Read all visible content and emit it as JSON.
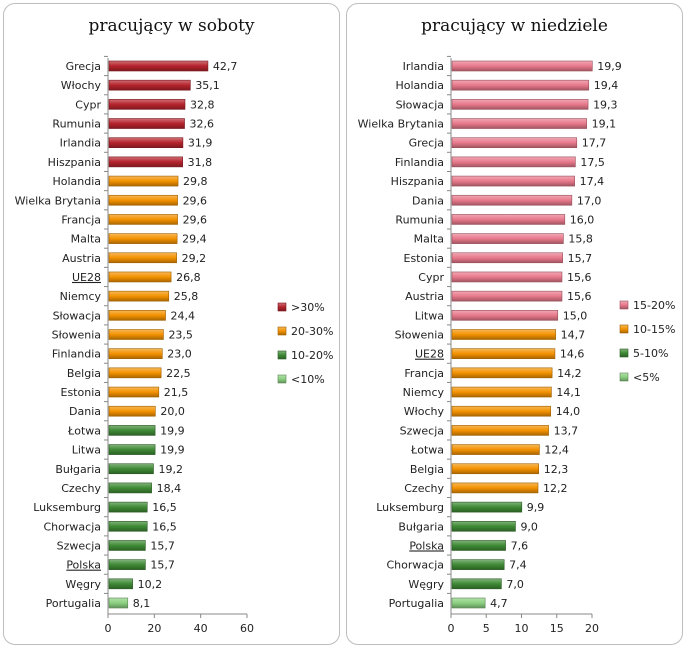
{
  "chart_data": [
    {
      "type": "bar",
      "orientation": "horizontal",
      "title": "pracujący w soboty",
      "categories": [
        "Grecja",
        "Włochy",
        "Cypr",
        "Rumunia",
        "Irlandia",
        "Hiszpania",
        "Holandia",
        "Wielka Brytania",
        "Francja",
        "Malta",
        "Austria",
        "UE28",
        "Niemcy",
        "Słowacja",
        "Słowenia",
        "Finlandia",
        "Belgia",
        "Estonia",
        "Dania",
        "Łotwa",
        "Litwa",
        "Bułgaria",
        "Czechy",
        "Luksemburg",
        "Chorwacja",
        "Szwecja",
        "Polska",
        "Węgry",
        "Portugalia"
      ],
      "values": [
        42.7,
        35.1,
        32.8,
        32.6,
        31.9,
        31.8,
        29.8,
        29.6,
        29.6,
        29.4,
        29.2,
        26.8,
        25.8,
        24.4,
        23.5,
        23.0,
        22.5,
        21.5,
        20.0,
        19.9,
        19.9,
        19.2,
        18.4,
        16.5,
        16.5,
        15.7,
        15.7,
        10.2,
        8.1
      ],
      "value_labels": [
        "42,7",
        "35,1",
        "32,8",
        "32,6",
        "31,9",
        "31,8",
        "29,8",
        "29,6",
        "29,6",
        "29,4",
        "29,2",
        "26,8",
        "25,8",
        "24,4",
        "23,5",
        "23,0",
        "22,5",
        "21,5",
        "20,0",
        "19,9",
        "19,9",
        "19,2",
        "18,4",
        "16,5",
        "16,5",
        "15,7",
        "15,7",
        "10,2",
        "8,1"
      ],
      "underlined": [
        "UE28",
        "Polska"
      ],
      "xlim": [
        0,
        60
      ],
      "xticks": [
        0,
        20,
        40,
        60
      ],
      "legend": [
        {
          "label": ">30%",
          "color": "#b5232c",
          "min": 30
        },
        {
          "label": "20-30%",
          "color": "#f39200",
          "min": 20
        },
        {
          "label": "10-20%",
          "color": "#3f8a35",
          "min": 10
        },
        {
          "label": "<10%",
          "color": "#8bd080",
          "min": 0
        }
      ],
      "legend_position": "right"
    },
    {
      "type": "bar",
      "orientation": "horizontal",
      "title": "pracujący w niedziele",
      "categories": [
        "Irlandia",
        "Holandia",
        "Słowacja",
        "Wielka Brytania",
        "Grecja",
        "Finlandia",
        "Hiszpania",
        "Dania",
        "Rumunia",
        "Malta",
        "Estonia",
        "Cypr",
        "Austria",
        "Litwa",
        "Słowenia",
        "UE28",
        "Francja",
        "Niemcy",
        "Włochy",
        "Szwecja",
        "Łotwa",
        "Belgia",
        "Czechy",
        "Luksemburg",
        "Bułgaria",
        "Polska",
        "Chorwacja",
        "Węgry",
        "Portugalia"
      ],
      "values": [
        19.9,
        19.4,
        19.3,
        19.1,
        17.7,
        17.5,
        17.4,
        17.0,
        16.0,
        15.8,
        15.7,
        15.6,
        15.6,
        15.0,
        14.7,
        14.6,
        14.2,
        14.1,
        14.0,
        13.7,
        12.4,
        12.3,
        12.2,
        9.9,
        9.0,
        7.6,
        7.4,
        7.0,
        4.7
      ],
      "value_labels": [
        "19,9",
        "19,4",
        "19,3",
        "19,1",
        "17,7",
        "17,5",
        "17,4",
        "17,0",
        "16,0",
        "15,8",
        "15,7",
        "15,6",
        "15,6",
        "15,0",
        "14,7",
        "14,6",
        "14,2",
        "14,1",
        "14,0",
        "13,7",
        "12,4",
        "12,3",
        "12,2",
        "9,9",
        "9,0",
        "7,6",
        "7,4",
        "7,0",
        "4,7"
      ],
      "underlined": [
        "UE28",
        "Polska"
      ],
      "xlim": [
        0,
        20
      ],
      "xticks": [
        0,
        5,
        10,
        15,
        20
      ],
      "legend": [
        {
          "label": "15-20%",
          "color": "#e8798c",
          "min": 15
        },
        {
          "label": "10-15%",
          "color": "#f39200",
          "min": 10
        },
        {
          "label": "5-10%",
          "color": "#3f8a35",
          "min": 5
        },
        {
          "label": "<5%",
          "color": "#8bd080",
          "min": 0
        }
      ],
      "legend_position": "right"
    }
  ]
}
